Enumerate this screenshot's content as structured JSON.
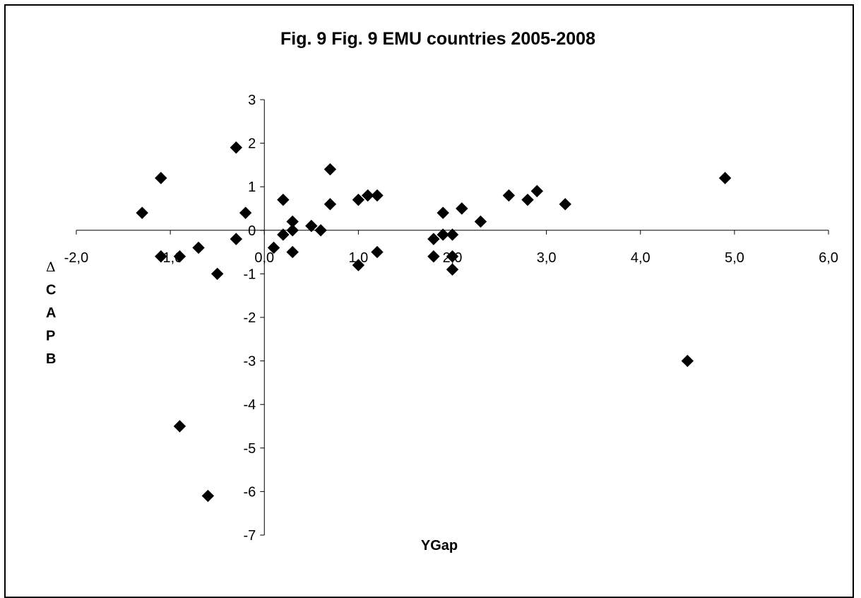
{
  "chart_data": {
    "type": "scatter",
    "title": "Fig. 9 Fig. 9 EMU countries 2005-2008",
    "xlabel": "YGap",
    "ylabel_lines": [
      "Δ",
      "C",
      "A",
      "P",
      "B"
    ],
    "xlim": [
      -2.0,
      6.0
    ],
    "ylim": [
      -7,
      3
    ],
    "x_ticks": [
      -2,
      -1,
      0,
      1,
      2,
      3,
      4,
      5,
      6
    ],
    "x_tick_labels": [
      "-2,0",
      "-1,0",
      "0,0",
      "1,0",
      "2,0",
      "3,0",
      "4,0",
      "5,0",
      "6,0"
    ],
    "y_ticks": [
      3,
      2,
      1,
      0,
      -1,
      -2,
      -3,
      -4,
      -5,
      -6,
      -7
    ],
    "y_tick_labels": [
      "3",
      "2",
      "1",
      "0",
      "-1",
      "-2",
      "-3",
      "-4",
      "-5",
      "-6",
      "-7"
    ],
    "grid": false,
    "legend": "none",
    "marker": "diamond",
    "marker_color": "#000000",
    "points": [
      {
        "x": -1.3,
        "y": 0.4
      },
      {
        "x": -1.1,
        "y": 1.2
      },
      {
        "x": -1.1,
        "y": -0.6
      },
      {
        "x": -0.9,
        "y": -0.6
      },
      {
        "x": -0.9,
        "y": -4.5
      },
      {
        "x": -0.7,
        "y": -0.4
      },
      {
        "x": -0.6,
        "y": -6.1
      },
      {
        "x": -0.5,
        "y": -1.0
      },
      {
        "x": -0.3,
        "y": 1.9
      },
      {
        "x": -0.3,
        "y": -0.2
      },
      {
        "x": -0.2,
        "y": 0.4
      },
      {
        "x": 0.1,
        "y": -0.4
      },
      {
        "x": 0.2,
        "y": 0.7
      },
      {
        "x": 0.2,
        "y": -0.1
      },
      {
        "x": 0.3,
        "y": 0.2
      },
      {
        "x": 0.3,
        "y": 0.0
      },
      {
        "x": 0.3,
        "y": -0.5
      },
      {
        "x": 0.5,
        "y": 0.1
      },
      {
        "x": 0.6,
        "y": 0.0
      },
      {
        "x": 0.7,
        "y": 1.4
      },
      {
        "x": 0.7,
        "y": 0.6
      },
      {
        "x": 1.0,
        "y": 0.7
      },
      {
        "x": 1.0,
        "y": -0.8
      },
      {
        "x": 1.1,
        "y": 0.8
      },
      {
        "x": 1.2,
        "y": 0.8
      },
      {
        "x": 1.2,
        "y": -0.5
      },
      {
        "x": 1.8,
        "y": -0.2
      },
      {
        "x": 1.8,
        "y": -0.6
      },
      {
        "x": 1.9,
        "y": 0.4
      },
      {
        "x": 1.9,
        "y": -0.1
      },
      {
        "x": 2.0,
        "y": -0.1
      },
      {
        "x": 2.0,
        "y": -0.6
      },
      {
        "x": 2.0,
        "y": -0.9
      },
      {
        "x": 2.1,
        "y": 0.5
      },
      {
        "x": 2.3,
        "y": 0.2
      },
      {
        "x": 2.6,
        "y": 0.8
      },
      {
        "x": 2.8,
        "y": 0.7
      },
      {
        "x": 2.9,
        "y": 0.9
      },
      {
        "x": 3.2,
        "y": 0.6
      },
      {
        "x": 4.5,
        "y": -3.0
      },
      {
        "x": 4.9,
        "y": 1.2
      }
    ]
  }
}
